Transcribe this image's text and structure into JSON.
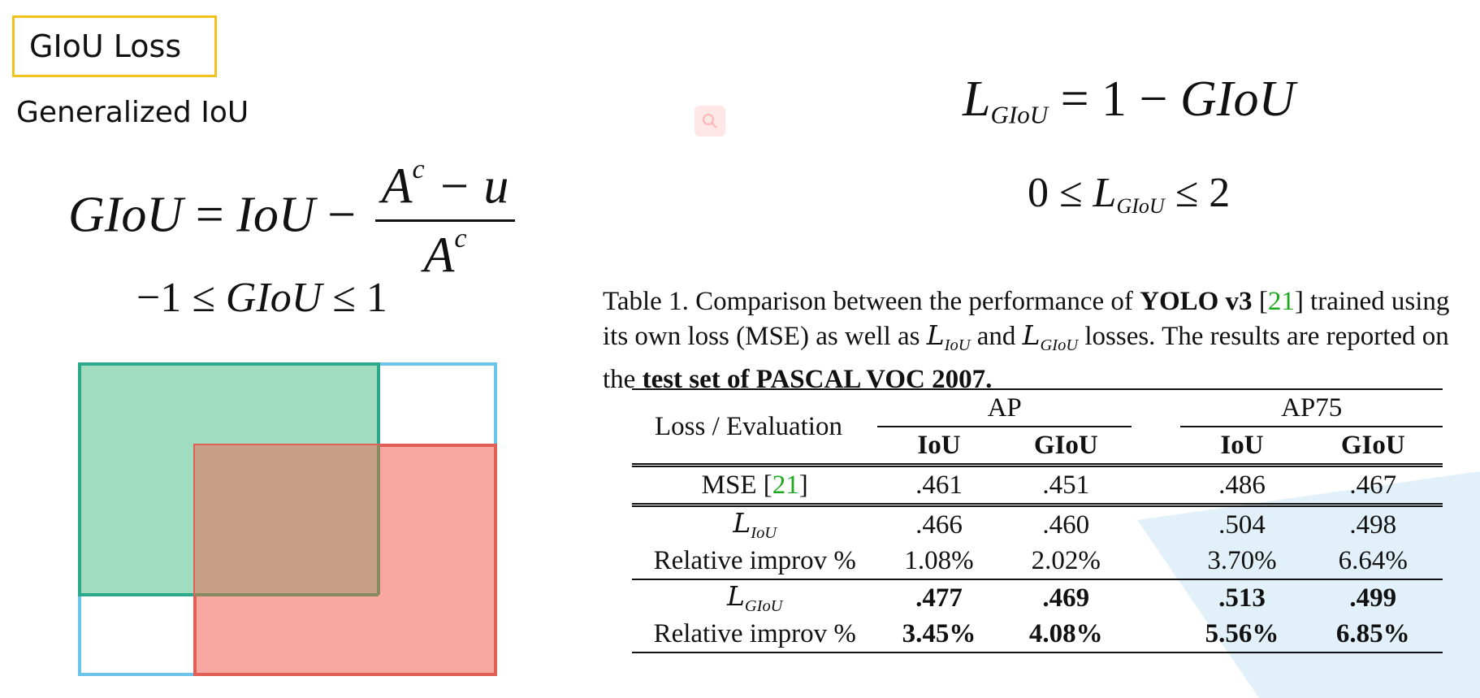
{
  "slide": {
    "title": "GIoU Loss",
    "subtitle": "Generalized IoU"
  },
  "formulas": {
    "giou_lhs": "GIoU",
    "giou_eq": "=",
    "giou_iou": "IoU",
    "giou_minus": "−",
    "frac_num_a": "A",
    "frac_num_sup": "c",
    "frac_num_rest": " − u",
    "frac_den_a": "A",
    "frac_den_sup": "c",
    "range1_left": "−1 ≤ ",
    "range1_mid": "GIoU",
    "range1_right": " ≤ 1",
    "loss_L": "L",
    "loss_sub": "GIoU",
    "loss_rhs_num": " = 1 − ",
    "loss_rhs_giou": "GIoU",
    "range2_left": "0 ≤ ",
    "range2_L": "L",
    "range2_sub": "GIoU",
    "range2_right": " ≤ 2"
  },
  "diagram": {
    "green_color": "#9fdcc0",
    "green_border": "#2aa88a",
    "red_color": "#f8a8a0",
    "red_border": "#e06058",
    "overlap_color": "#c8a088",
    "enclosing_border": "#6cc4ea"
  },
  "caption": {
    "p1": "Table 1. Comparison between the performance of ",
    "b1": "YOLO v3",
    "p2": " [",
    "ref": "21",
    "p3": "] trained using its own loss (MSE) as well as ",
    "l1": "L",
    "l1sub": "IoU",
    "p4": " and ",
    "l2": "L",
    "l2sub": "GIoU",
    "p5": " losses. The results are reported on the ",
    "b2": "test set of PASCAL VOC 2007."
  },
  "table": {
    "header": {
      "loss_eval": "Loss / Evaluation",
      "ap": "AP",
      "ap75": "AP75",
      "iou": "IoU",
      "giou": "GIoU"
    },
    "rows": [
      {
        "label": "MSE [",
        "ref": "21",
        "label_end": "]",
        "v": [
          ".461",
          ".451",
          ".486",
          ".467"
        ]
      },
      {
        "label_L": "L",
        "label_sub": "IoU",
        "v": [
          ".466",
          ".460",
          ".504",
          ".498"
        ]
      },
      {
        "label": "Relative improv %",
        "v": [
          "1.08%",
          "2.02%",
          "3.70%",
          "6.64%"
        ]
      },
      {
        "label_L": "L",
        "label_sub": "GIoU",
        "v": [
          ".477",
          ".469",
          ".513",
          ".499"
        ]
      },
      {
        "label": "Relative improv %",
        "v": [
          "3.45%",
          "4.08%",
          "5.56%",
          "6.85%"
        ]
      }
    ]
  },
  "icons": [
    "magnifier-icon",
    "watermark-shape"
  ]
}
